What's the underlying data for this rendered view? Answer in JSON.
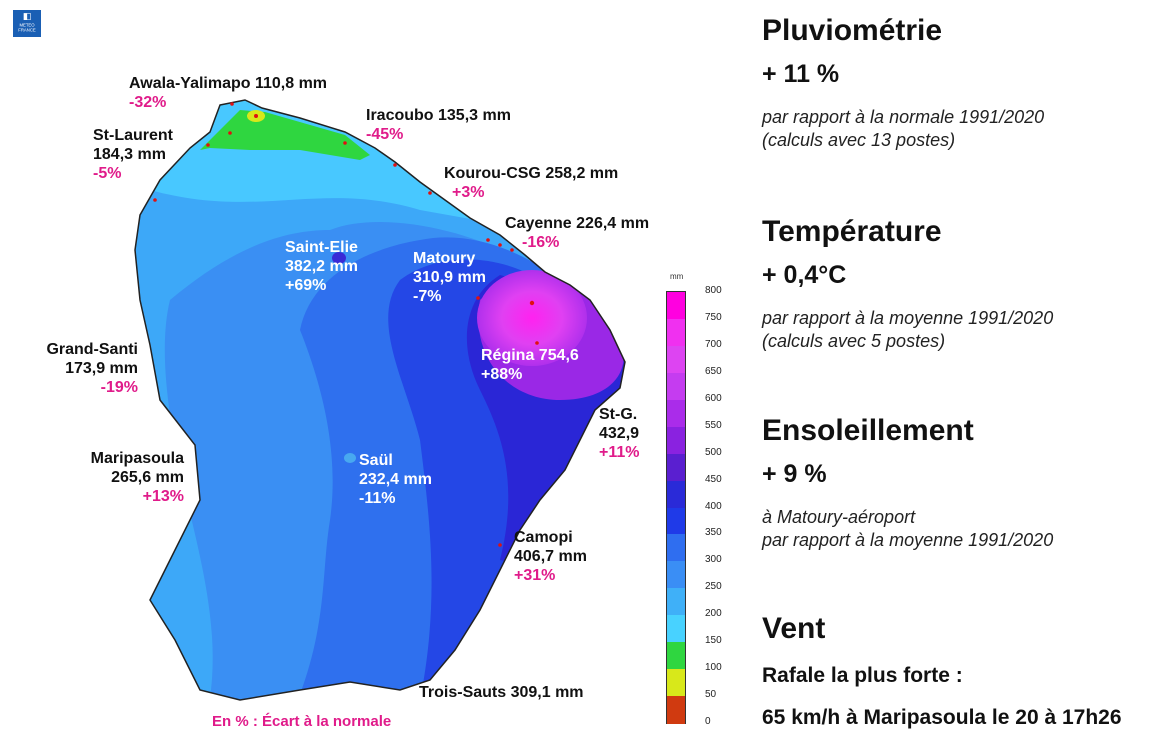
{
  "logo": {
    "text": "METEO FRANCE"
  },
  "map": {
    "stations": [
      {
        "name": "Awala-Yalimapo 110,8 mm",
        "deviation": "-32%"
      },
      {
        "name": "Iracoubo 135,3 mm",
        "deviation": "-45%"
      },
      {
        "name": "St-Laurent",
        "value": "184,3 mm",
        "deviation": "-5%"
      },
      {
        "name": "Kourou-CSG 258,2 mm",
        "deviation": "+3%"
      },
      {
        "name": "Cayenne 226,4 mm",
        "deviation": "-16%"
      },
      {
        "name": "Saint-Elie",
        "value": "382,2 mm",
        "deviation": "+69%"
      },
      {
        "name": "Matoury",
        "value": "310,9 mm",
        "deviation": "-7%"
      },
      {
        "name": "Grand-Santi",
        "value": "173,9 mm",
        "deviation": "-19%"
      },
      {
        "name": "Régina 754,6",
        "deviation": "+88%"
      },
      {
        "name": "St-G.",
        "value": "432,9",
        "deviation": "+11%"
      },
      {
        "name": "Maripasoula",
        "value": "265,6 mm",
        "deviation": "+13%"
      },
      {
        "name": "Saül",
        "value": "232,4 mm",
        "deviation": "-11%"
      },
      {
        "name": "Camopi",
        "value": "406,7 mm",
        "deviation": "+31%"
      },
      {
        "name": "Trois-Sauts 309,1 mm"
      }
    ],
    "note": "En % : Écart à la normale"
  },
  "legend": {
    "unit": "mm",
    "ticks": [
      "800",
      "750",
      "700",
      "650",
      "600",
      "550",
      "500",
      "450",
      "400",
      "350",
      "300",
      "250",
      "200",
      "150",
      "100",
      "50",
      "0"
    ],
    "colors": [
      "#ff00e0",
      "#f030f0",
      "#dd44f2",
      "#c53cf0",
      "#aa2cea",
      "#8a22e0",
      "#5a1fd0",
      "#2a2ad8",
      "#1f3ae8",
      "#2f6ef0",
      "#3a8ef5",
      "#3fb0f8",
      "#48d2ff",
      "#2fd640",
      "#d8e81a",
      "#d03a10"
    ]
  },
  "panel": {
    "rain": {
      "title": "Pluviométrie",
      "value": "+ 11 %",
      "line1": "par rapport à la normale 1991/2020",
      "line2": "(calculs avec 13 postes)"
    },
    "temp": {
      "title": "Température",
      "value": "+ 0,4°C",
      "line1": "par rapport à la moyenne 1991/2020",
      "line2": "(calculs avec 5 postes)"
    },
    "sun": {
      "title": "Ensoleillement",
      "value": "+ 9 %",
      "line1": "à Matoury-aéroport",
      "line2": "par rapport à la moyenne 1991/2020"
    },
    "wind": {
      "title": "Vent",
      "subtitle": "Rafale la plus forte :",
      "value": "65 km/h à Maripasoula le 20 à 17h26"
    }
  }
}
